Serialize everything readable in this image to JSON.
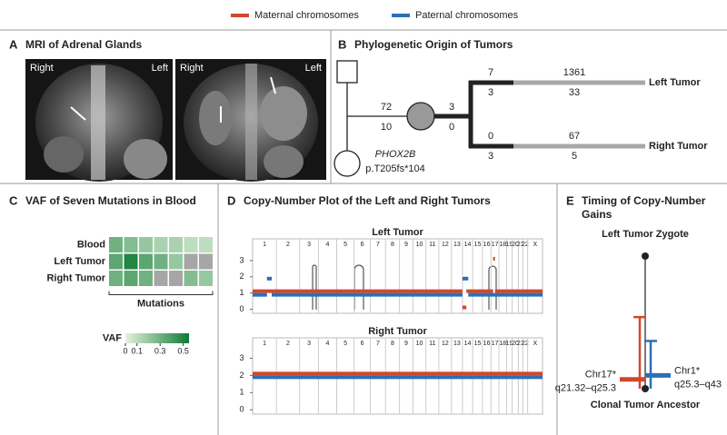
{
  "legend": [
    {
      "label": "Maternal chromosomes",
      "color": "#d2472c"
    },
    {
      "label": "Paternal chromosomes",
      "color": "#2b6fb6"
    }
  ],
  "panel_a": {
    "letter": "A",
    "title": "MRI of Adrenal Glands",
    "images": [
      {
        "right": "Right",
        "left": "Left"
      },
      {
        "right": "Right",
        "left": "Left"
      }
    ]
  },
  "panel_b": {
    "letter": "B",
    "title": "Phylogenetic Origin of Tumors",
    "germline": {
      "above": 72,
      "below": 10
    },
    "trunk": {
      "above": 3,
      "below": 0
    },
    "left": {
      "name": "Left Tumor",
      "early_above": 7,
      "early_below": 3,
      "late_above": 1361,
      "late_below": 33
    },
    "right": {
      "name": "Right Tumor",
      "early_above": 0,
      "early_below": 3,
      "late_above": 67,
      "late_below": 5
    },
    "gene": "PHOX2B",
    "variant": "p.T205fs*104"
  },
  "chart_data": [
    {
      "type": "heatmap",
      "letter": "C",
      "title": "VAF of Seven Mutations in Blood",
      "rows": [
        "Blood",
        "Left Tumor",
        "Right Tumor"
      ],
      "x_label": "Mutations",
      "values": [
        [
          0.3,
          0.25,
          0.2,
          0.15,
          0.15,
          0.1,
          0.1
        ],
        [
          0.35,
          0.5,
          0.35,
          0.3,
          0.2,
          null,
          null
        ],
        [
          0.3,
          0.35,
          0.3,
          null,
          null,
          0.25,
          0.2
        ]
      ],
      "missing_color": "#a6a6a6",
      "colorbar": {
        "label": "VAF",
        "lim": [
          0,
          0.55
        ],
        "ticks": [
          0,
          0.1,
          0.3,
          0.5
        ],
        "colors": [
          "#e3f4dd",
          "#0f7a35"
        ]
      }
    },
    {
      "type": "copy-number",
      "letter": "D",
      "title": "Copy-Number Plot of the Left and Right Tumors",
      "chromosomes": [
        "1",
        "2",
        "3",
        "4",
        "5",
        "6",
        "7",
        "8",
        "9",
        "10",
        "11",
        "12",
        "13",
        "14",
        "15",
        "16",
        "17",
        "18",
        "19",
        "20",
        "21",
        "22",
        "X"
      ],
      "chrom_starts": [
        0,
        249,
        492,
        690,
        881,
        1063,
        1234,
        1393,
        1539,
        1680,
        1816,
        1951,
        2084,
        2199,
        2306,
        2408,
        2498,
        2581,
        2661,
        2720,
        2784,
        2831,
        2882
      ],
      "xlim": [
        0,
        3038
      ],
      "ylim": [
        -0.25,
        3.5
      ],
      "yticks": [
        0,
        1,
        2,
        3
      ],
      "panels": [
        {
          "title": "Left Tumor",
          "series": [
            {
              "color": "#d2472c",
              "segments": [
                [
                  0,
                  2199,
                  1
                ],
                [
                  2199,
                  2240,
                  0
                ],
                [
                  2240,
                  2520,
                  1
                ],
                [
                  2520,
                  2540,
                  3
                ],
                [
                  2540,
                  3038,
                  1
                ]
              ]
            },
            {
              "color": "#2b6fb6",
              "segments": [
                [
                  0,
                  150,
                  1
                ],
                [
                  150,
                  200,
                  2
                ],
                [
                  200,
                  2199,
                  1
                ],
                [
                  2199,
                  2260,
                  2
                ],
                [
                  2260,
                  3038,
                  1
                ]
              ]
            }
          ]
        },
        {
          "title": "Right Tumor",
          "series": [
            {
              "color": "#d2472c",
              "segments": [
                [
                  0,
                  3038,
                  2
                ]
              ]
            },
            {
              "color": "#2b6fb6",
              "segments": [
                [
                  0,
                  3038,
                  2
                ]
              ]
            }
          ]
        }
      ]
    },
    {
      "type": "timing",
      "letter": "E",
      "title": "Timing of Copy-Number Gains",
      "top_label": "Left Tumor Zygote",
      "bottom_label": "Clonal Tumor Ancestor",
      "ylim": [
        0,
        1
      ],
      "bars": [
        {
          "name": "Chr17*",
          "region": "q21.32–q25.3",
          "color": "#d2472c",
          "value": 0.93,
          "low": 0.46,
          "high": 1
        },
        {
          "name": "Chr1*",
          "region": "q25.3–q43",
          "color": "#2b6fb6",
          "value": 0.9,
          "low": 0.64,
          "high": 1
        }
      ]
    }
  ]
}
